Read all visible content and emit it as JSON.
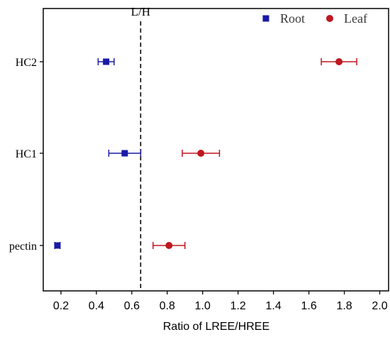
{
  "chart_data": {
    "type": "scatter",
    "xlabel": "Ratio of LREE/HREE",
    "xlim": [
      0.1,
      2.05
    ],
    "xticks": [
      0.2,
      0.4,
      0.6,
      0.8,
      1.0,
      1.2,
      1.4,
      1.6,
      1.8,
      2.0
    ],
    "xtick_labels": [
      "0.2",
      "0.4",
      "0.6",
      "0.8",
      "1.0",
      "1.2",
      "1.4",
      "1.6",
      "1.8",
      "2.0"
    ],
    "categories": [
      "HC2",
      "HC1",
      "pectin"
    ],
    "reference_line": {
      "label": "L/H",
      "x": 0.65,
      "style": "dashed"
    },
    "legend_position": "top-right",
    "grid": false,
    "series": [
      {
        "name": "Root",
        "marker": "square",
        "color": "#1a1aa6",
        "values": [
          0.455,
          0.56,
          0.18
        ],
        "errors": [
          0.045,
          0.09,
          0.015
        ]
      },
      {
        "name": "Leaf",
        "marker": "circle",
        "color": "#c0161f",
        "values": [
          1.77,
          0.99,
          0.81
        ],
        "errors": [
          0.1,
          0.105,
          0.09
        ]
      }
    ]
  }
}
